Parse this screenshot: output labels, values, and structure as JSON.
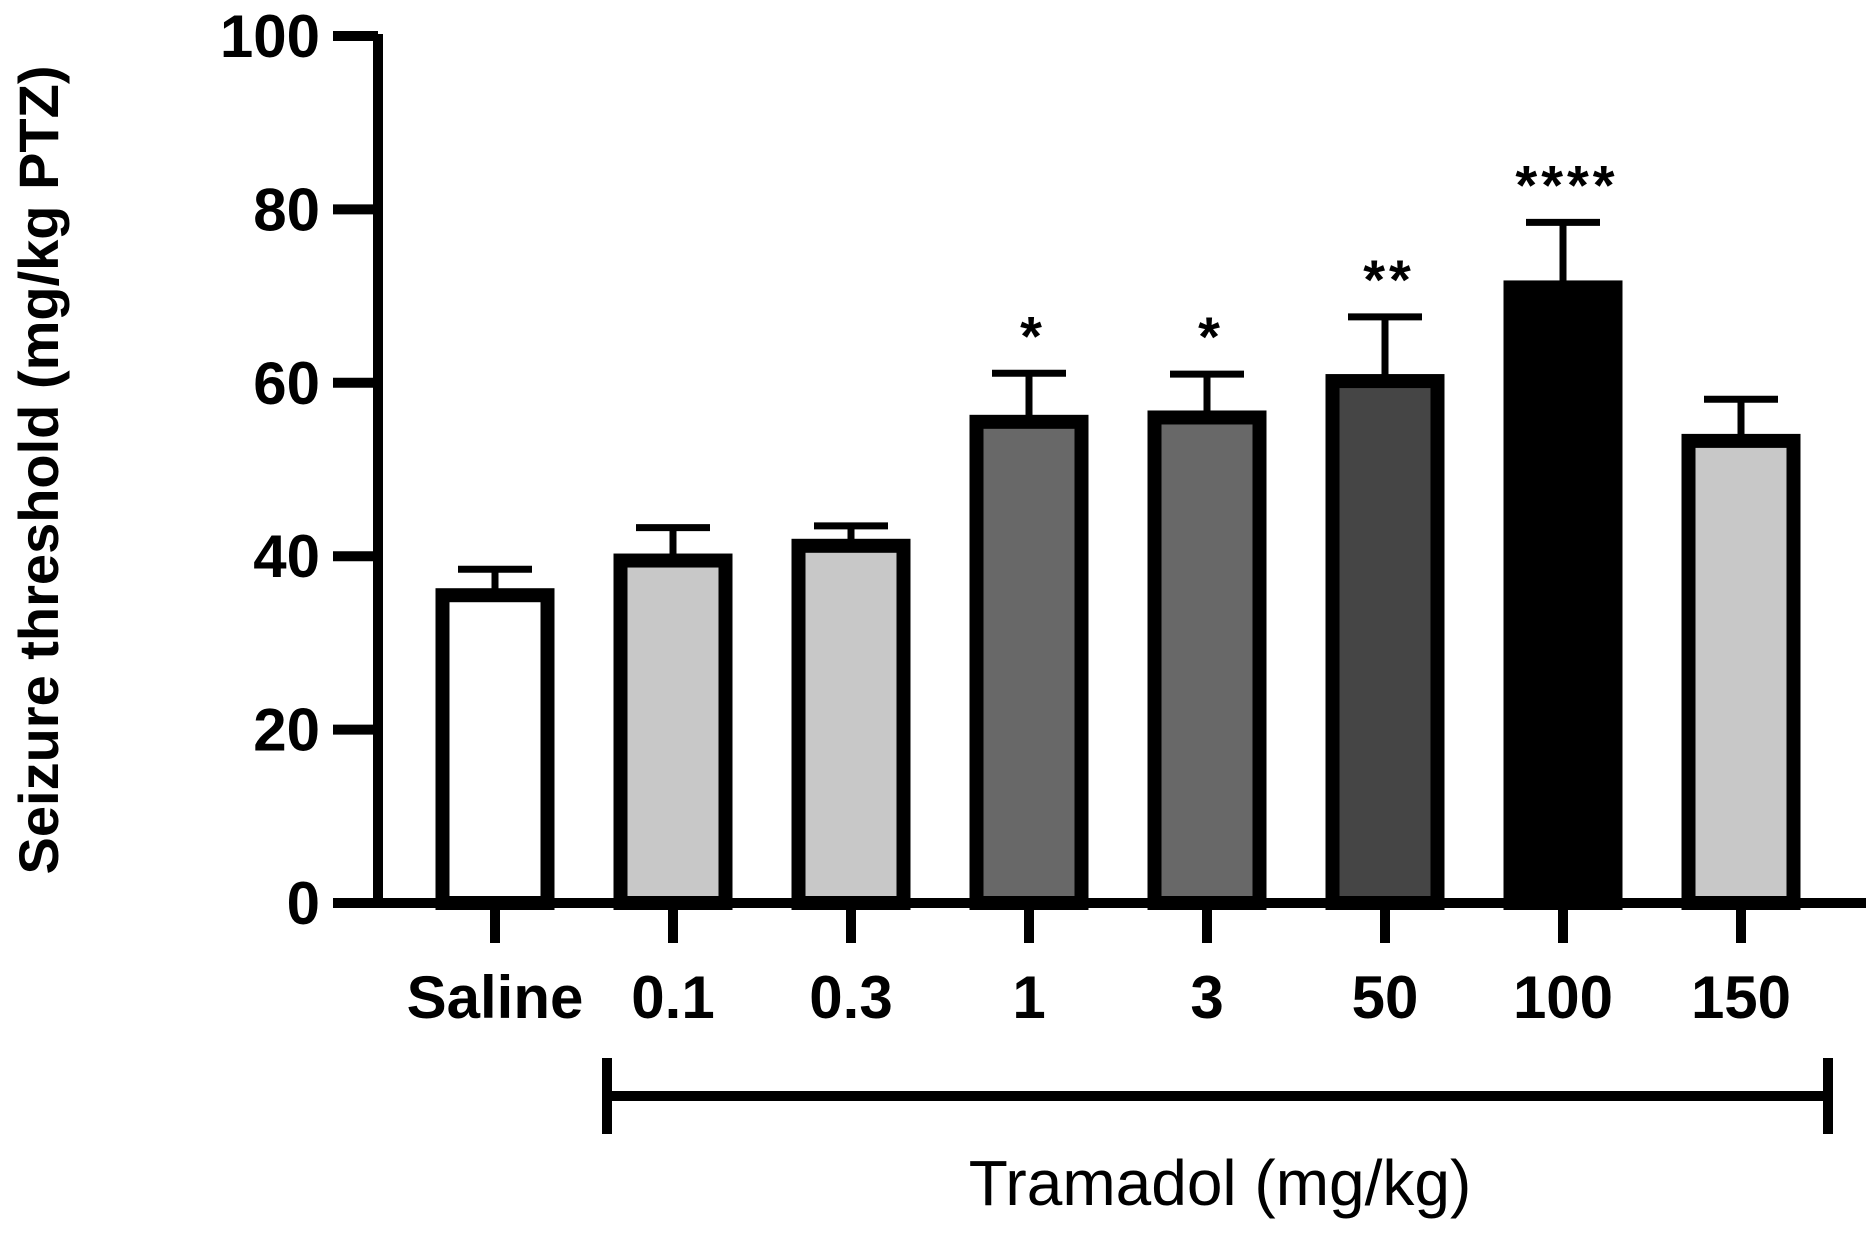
{
  "chart_data": {
    "type": "bar",
    "title": "",
    "ylabel": "Seizure threshold (mg/kg PTZ)",
    "xlabel": "Tramadol (mg/kg)",
    "ylim": [
      0,
      100
    ],
    "yticks": [
      0,
      20,
      40,
      60,
      80,
      100
    ],
    "categories": [
      "Saline",
      "0.1",
      "0.3",
      "1",
      "3",
      "50",
      "100",
      "150"
    ],
    "values": [
      35.5,
      39.5,
      41.2,
      55.5,
      56.0,
      60.2,
      71.0,
      53.3
    ],
    "errors": [
      3.0,
      3.8,
      2.3,
      5.6,
      5.0,
      7.4,
      7.5,
      4.8
    ],
    "significance": [
      "",
      "",
      "",
      "*",
      "*",
      "**",
      "****",
      ""
    ],
    "fill_colors": [
      "#ffffff",
      "#c8c8c8",
      "#c8c8c8",
      "#686868",
      "#686868",
      "#454545",
      "#000000",
      "#c8c8c8"
    ],
    "edge_color": "#000000",
    "grid": false
  }
}
